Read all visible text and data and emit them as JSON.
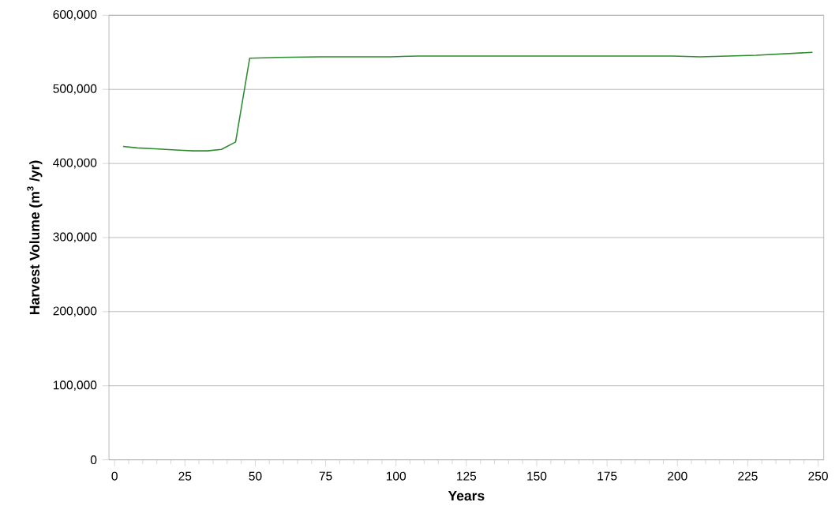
{
  "chart_data": {
    "type": "line",
    "xlabel": "Years",
    "ylabel": "Harvest Volume (m$^{3}$ /yr)",
    "x": [
      3,
      8,
      13,
      18,
      23,
      28,
      33,
      38,
      43,
      48,
      58,
      73,
      98,
      108,
      128,
      153,
      158,
      198,
      208,
      228,
      248
    ],
    "series": [
      {
        "color": "#2e8b2e",
        "values": [
          423000,
          421000,
          420000,
          419000,
          418000,
          417000,
          417000,
          419000,
          429000,
          542000,
          543000,
          544000,
          544000,
          545000,
          545000,
          545000,
          545000,
          545000,
          544000,
          546000,
          550000
        ]
      }
    ],
    "xlim": [
      -2,
      252
    ],
    "xticks": [
      0,
      25,
      50,
      75,
      100,
      125,
      150,
      175,
      200,
      225,
      250
    ],
    "ylim": [
      0,
      600000
    ],
    "yticks": [
      {
        "value": 0,
        "label": "0"
      },
      {
        "value": 100000,
        "label": "100,000"
      },
      {
        "value": 200000,
        "label": "200,000"
      },
      {
        "value": 300000,
        "label": "300,000"
      },
      {
        "value": 400000,
        "label": "400,000"
      },
      {
        "value": 500000,
        "label": "500,000"
      },
      {
        "value": 600000,
        "label": "600,000"
      }
    ],
    "grid": "y",
    "marker": "none",
    "line_style": "solid"
  }
}
